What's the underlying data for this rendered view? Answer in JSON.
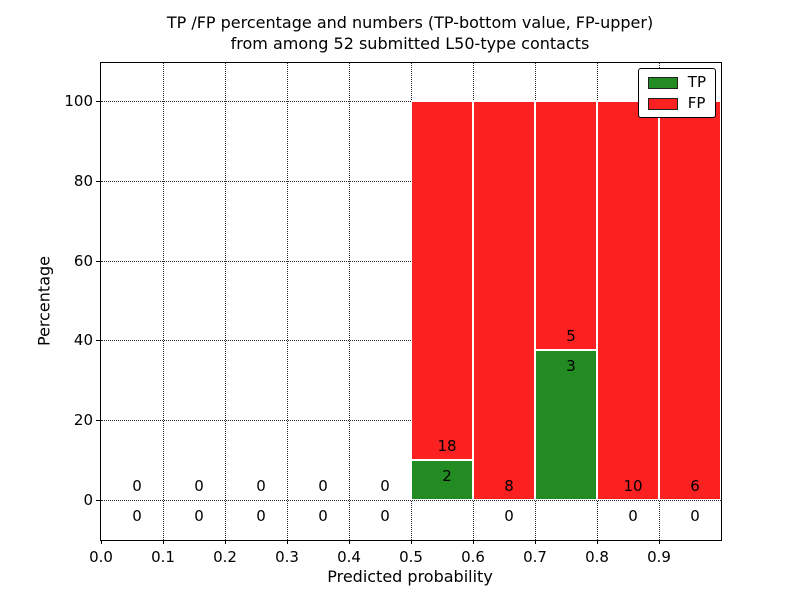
{
  "chart_data": {
    "type": "bar",
    "stacked": true,
    "title_line1": "TP /FP percentage and numbers (TP-bottom value, FP-upper)",
    "title_line2": "from among 52 submitted L50-type contacts",
    "xlabel": "Predicted probability",
    "ylabel": "Percentage",
    "xlim": [
      0.0,
      1.0
    ],
    "ylim": [
      -10,
      109.5
    ],
    "grid": true,
    "grid_style": "dotted",
    "x_ticks": [
      {
        "value": 0.0,
        "label": "0.0"
      },
      {
        "value": 0.1,
        "label": "0.1"
      },
      {
        "value": 0.2,
        "label": "0.2"
      },
      {
        "value": 0.3,
        "label": "0.3"
      },
      {
        "value": 0.4,
        "label": "0.4"
      },
      {
        "value": 0.5,
        "label": "0.5"
      },
      {
        "value": 0.6,
        "label": "0.6"
      },
      {
        "value": 0.7,
        "label": "0.7"
      },
      {
        "value": 0.8,
        "label": "0.8"
      },
      {
        "value": 0.9,
        "label": "0.9"
      }
    ],
    "y_ticks": [
      {
        "value": 0,
        "label": "0"
      },
      {
        "value": 20,
        "label": "20"
      },
      {
        "value": 40,
        "label": "40"
      },
      {
        "value": 60,
        "label": "60"
      },
      {
        "value": 80,
        "label": "80"
      },
      {
        "value": 100,
        "label": "100"
      }
    ],
    "series": [
      {
        "name": "TP",
        "color": "#228b22",
        "values": [
          0,
          0,
          0,
          0,
          0,
          2,
          0,
          3,
          0,
          0
        ]
      },
      {
        "name": "FP",
        "color": "#fb2121",
        "values": [
          0,
          0,
          0,
          0,
          0,
          18,
          8,
          5,
          10,
          6
        ]
      }
    ],
    "bins": [
      {
        "x0": 0.0,
        "x1": 0.1,
        "tp": 0,
        "fp": 0
      },
      {
        "x0": 0.1,
        "x1": 0.2,
        "tp": 0,
        "fp": 0
      },
      {
        "x0": 0.2,
        "x1": 0.3,
        "tp": 0,
        "fp": 0
      },
      {
        "x0": 0.3,
        "x1": 0.4,
        "tp": 0,
        "fp": 0
      },
      {
        "x0": 0.4,
        "x1": 0.5,
        "tp": 0,
        "fp": 0
      },
      {
        "x0": 0.5,
        "x1": 0.6,
        "tp": 2,
        "fp": 18
      },
      {
        "x0": 0.6,
        "x1": 0.7,
        "tp": 0,
        "fp": 8
      },
      {
        "x0": 0.7,
        "x1": 0.8,
        "tp": 3,
        "fp": 5
      },
      {
        "x0": 0.8,
        "x1": 0.9,
        "tp": 0,
        "fp": 10
      },
      {
        "x0": 0.9,
        "x1": 1.0,
        "tp": 0,
        "fp": 6
      }
    ],
    "normalization": "each non-empty bin stacked to 100 percent; labels show raw counts",
    "legend": {
      "position": "upper right",
      "entries": [
        {
          "label": "TP",
          "color": "#228b22"
        },
        {
          "label": "FP",
          "color": "#fb2121"
        }
      ]
    }
  }
}
